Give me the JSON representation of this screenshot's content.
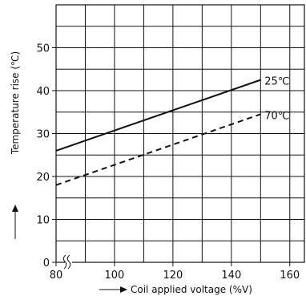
{
  "chart_data": {
    "type": "line",
    "title": "",
    "xlabel": "Coil applied voltage (%V)",
    "ylabel": "Temperature rise (℃)",
    "xlim": [
      80,
      165
    ],
    "ylim": [
      0,
      60
    ],
    "x_ticks": [
      80,
      100,
      120,
      140,
      160
    ],
    "y_ticks": [
      0,
      10,
      20,
      30,
      40,
      50
    ],
    "grid": true,
    "x_axis_break": true,
    "series": [
      {
        "name": "25℃",
        "line_style": "solid",
        "color": "#111111",
        "x": [
          80,
          150
        ],
        "y": [
          26,
          42.5
        ]
      },
      {
        "name": "70℃",
        "line_style": "dashed",
        "color": "#111111",
        "x": [
          80,
          150
        ],
        "y": [
          18,
          34.5
        ]
      }
    ]
  }
}
